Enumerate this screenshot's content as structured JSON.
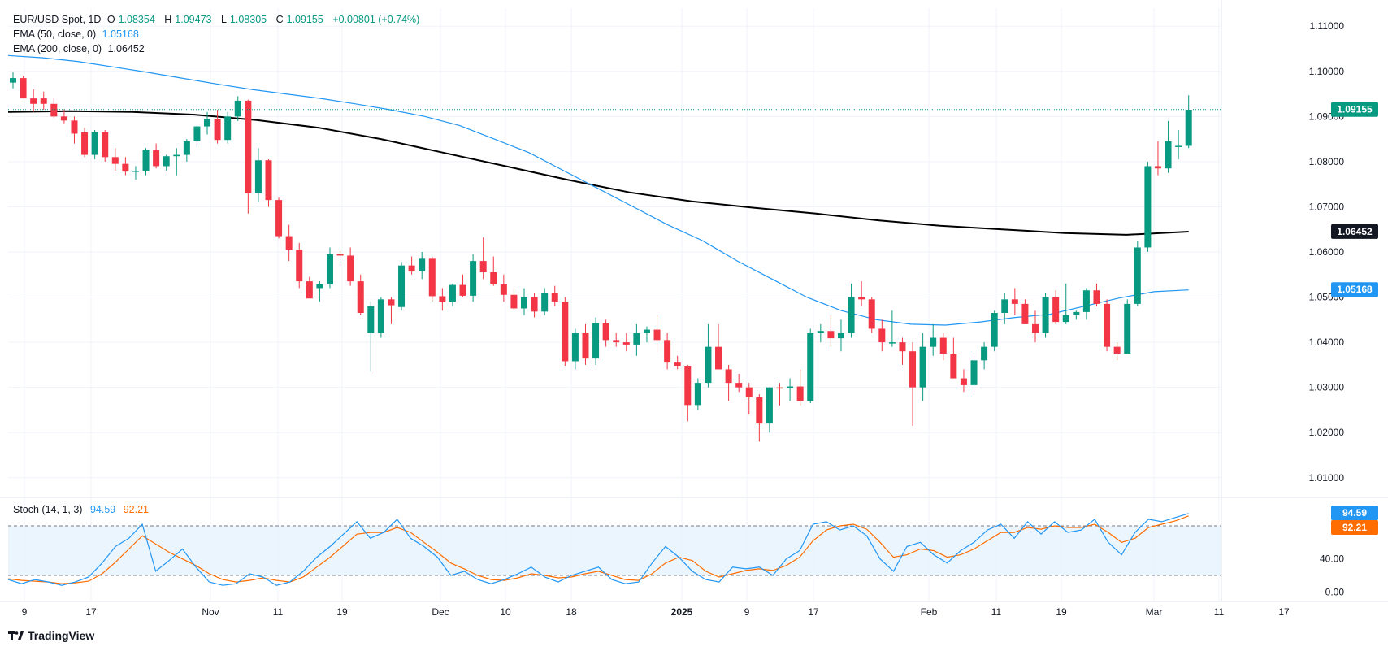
{
  "header": {
    "symbol": "EUR/USD Spot, 1D",
    "open_label": "O",
    "open": "1.08354",
    "high_label": "H",
    "high": "1.09473",
    "low_label": "L",
    "low": "1.08305",
    "close_label": "C",
    "close": "1.09155",
    "change": "+0.00801 (+0.74%)"
  },
  "indicators": {
    "ema50": {
      "label": "EMA (50, close, 0)",
      "value": "1.05168"
    },
    "ema200": {
      "label": "EMA (200, close, 0)",
      "value": "1.06452"
    },
    "stoch": {
      "label": "Stoch (14, 1, 3)",
      "k": "94.59",
      "d": "92.21"
    }
  },
  "price_axis_labels": [
    "1.11000",
    "1.10000",
    "1.09000",
    "1.08000",
    "1.07000",
    "1.06000",
    "1.05000",
    "1.04000",
    "1.03000",
    "1.02000",
    "1.01000"
  ],
  "price_badges": {
    "last": "1.09155",
    "ema200": "1.06452",
    "ema50": "1.05168"
  },
  "stoch_axis_labels": [
    "40.00",
    "0.00"
  ],
  "stoch_badges": {
    "k": "94.59",
    "d": "92.21"
  },
  "time_axis_labels": [
    "9",
    "17",
    "Nov",
    "11",
    "19",
    "Dec",
    "10",
    "18",
    "2025",
    "9",
    "17",
    "Feb",
    "11",
    "19",
    "Mar",
    "11",
    "17"
  ],
  "brand": "TradingView",
  "colors": {
    "up": "#089981",
    "down": "#f23645",
    "ema50": "#2196f3",
    "ema200": "#000000",
    "stoch_k": "#2196f3",
    "stoch_d": "#ff6d00",
    "band_fill": "#e3f2fd"
  },
  "chart_data": [
    {
      "type": "candlestick",
      "title": "EUR/USD Spot, 1D",
      "ylim": [
        1.006,
        1.114
      ],
      "grid": true,
      "ohlc": [
        [
          1.0975,
          1.0998,
          1.0962,
          1.0985
        ],
        [
          1.0985,
          1.099,
          1.094,
          1.094
        ],
        [
          1.094,
          1.096,
          1.091,
          1.0928
        ],
        [
          1.094,
          1.0955,
          1.0915,
          1.0928
        ],
        [
          1.0928,
          1.0942,
          1.0898,
          1.09
        ],
        [
          1.09,
          1.0916,
          1.0885,
          1.0891
        ],
        [
          1.0891,
          1.09,
          1.084,
          1.0862
        ],
        [
          1.0865,
          1.0875,
          1.081,
          1.0815
        ],
        [
          1.0815,
          1.087,
          1.0805,
          1.0865
        ],
        [
          1.0865,
          1.087,
          1.08,
          1.081
        ],
        [
          1.081,
          1.083,
          1.078,
          1.0795
        ],
        [
          1.0795,
          1.081,
          1.077,
          1.0778
        ],
        [
          1.0778,
          1.079,
          1.076,
          1.078
        ],
        [
          1.078,
          1.083,
          1.077,
          1.0825
        ],
        [
          1.0825,
          1.084,
          1.0785,
          1.079
        ],
        [
          1.079,
          1.0815,
          1.078,
          1.0812
        ],
        [
          1.0812,
          1.083,
          1.077,
          1.0815
        ],
        [
          1.0815,
          1.085,
          1.08,
          1.0845
        ],
        [
          1.0845,
          1.088,
          1.083,
          1.0878
        ],
        [
          1.0878,
          1.091,
          1.086,
          1.0895
        ],
        [
          1.0895,
          1.0915,
          1.084,
          1.0848
        ],
        [
          1.0848,
          1.091,
          1.084,
          1.09
        ],
        [
          1.09,
          1.0945,
          1.089,
          1.0935
        ],
        [
          1.0935,
          1.0937,
          1.0685,
          1.073
        ],
        [
          1.073,
          1.083,
          1.071,
          1.0803
        ],
        [
          1.0803,
          1.0805,
          1.07,
          1.0715
        ],
        [
          1.0715,
          1.072,
          1.063,
          1.0635
        ],
        [
          1.0635,
          1.066,
          1.058,
          1.0605
        ],
        [
          1.0605,
          1.062,
          1.052,
          1.0535
        ],
        [
          1.0535,
          1.0545,
          1.05,
          1.0497
        ],
        [
          1.052,
          1.0535,
          1.049,
          1.0528
        ],
        [
          1.0528,
          1.061,
          1.052,
          1.0595
        ],
        [
          1.0595,
          1.0605,
          1.057,
          1.0592
        ],
        [
          1.0592,
          1.061,
          1.0525,
          1.0535
        ],
        [
          1.0535,
          1.055,
          1.046,
          1.0465
        ],
        [
          1.042,
          1.049,
          1.0335,
          1.048
        ],
        [
          1.042,
          1.05,
          1.041,
          1.0495
        ],
        [
          1.0495,
          1.05,
          1.044,
          1.0482
        ],
        [
          1.0478,
          1.0578,
          1.047,
          1.057
        ],
        [
          1.057,
          1.059,
          1.055,
          1.0557
        ],
        [
          1.0557,
          1.06,
          1.054,
          1.0585
        ],
        [
          1.0585,
          1.059,
          1.049,
          1.0502
        ],
        [
          1.0502,
          1.052,
          1.047,
          1.049
        ],
        [
          1.049,
          1.053,
          1.048,
          1.0527
        ],
        [
          1.0527,
          1.055,
          1.05,
          1.0503
        ],
        [
          1.0503,
          1.0595,
          1.049,
          1.058
        ],
        [
          1.058,
          1.0632,
          1.054,
          1.0555
        ],
        [
          1.0555,
          1.059,
          1.0525,
          1.0528
        ],
        [
          1.0528,
          1.055,
          1.049,
          1.0505
        ],
        [
          1.0505,
          1.052,
          1.047,
          1.0475
        ],
        [
          1.0475,
          1.052,
          1.046,
          1.05
        ],
        [
          1.05,
          1.051,
          1.0455,
          1.0468
        ],
        [
          1.0468,
          1.052,
          1.046,
          1.051
        ],
        [
          1.051,
          1.0525,
          1.048,
          1.049
        ],
        [
          1.049,
          1.05,
          1.0348,
          1.0358
        ],
        [
          1.0358,
          1.043,
          1.034,
          1.042
        ],
        [
          1.042,
          1.044,
          1.035,
          1.0364
        ],
        [
          1.0364,
          1.0455,
          1.035,
          1.0442
        ],
        [
          1.0442,
          1.045,
          1.039,
          1.0405
        ],
        [
          1.0405,
          1.042,
          1.039,
          1.04
        ],
        [
          1.04,
          1.042,
          1.038,
          1.0395
        ],
        [
          1.0395,
          1.044,
          1.037,
          1.042
        ],
        [
          1.042,
          1.0435,
          1.04,
          1.0428
        ],
        [
          1.0428,
          1.046,
          1.038,
          1.0405
        ],
        [
          1.0405,
          1.042,
          1.034,
          1.0355
        ],
        [
          1.0355,
          1.037,
          1.034,
          1.0348
        ],
        [
          1.0348,
          1.035,
          1.0225,
          1.0261
        ],
        [
          1.0261,
          1.032,
          1.025,
          1.031
        ],
        [
          1.031,
          1.044,
          1.03,
          1.039
        ],
        [
          1.039,
          1.044,
          1.034,
          1.034
        ],
        [
          1.034,
          1.035,
          1.027,
          1.031
        ],
        [
          1.031,
          1.033,
          1.029,
          1.03
        ],
        [
          1.03,
          1.031,
          1.024,
          1.0278
        ],
        [
          1.0278,
          1.0285,
          1.018,
          1.022
        ],
        [
          1.022,
          1.03,
          1.02,
          1.03
        ],
        [
          1.03,
          1.031,
          1.026,
          1.0298
        ],
        [
          1.0298,
          1.032,
          1.027,
          1.0302
        ],
        [
          1.0302,
          1.034,
          1.026,
          1.027
        ],
        [
          1.027,
          1.043,
          1.0265,
          1.042
        ],
        [
          1.042,
          1.044,
          1.04,
          1.0425
        ],
        [
          1.0425,
          1.046,
          1.039,
          1.0409
        ],
        [
          1.0409,
          1.045,
          1.038,
          1.042
        ],
        [
          1.042,
          1.053,
          1.041,
          1.05
        ],
        [
          1.05,
          1.0535,
          1.048,
          1.0495
        ],
        [
          1.0495,
          1.05,
          1.042,
          1.043
        ],
        [
          1.043,
          1.045,
          1.038,
          1.04
        ],
        [
          1.04,
          1.047,
          1.039,
          1.04
        ],
        [
          1.04,
          1.041,
          1.035,
          1.038
        ],
        [
          1.038,
          1.04,
          1.0215,
          1.03
        ],
        [
          1.03,
          1.042,
          1.027,
          1.039
        ],
        [
          1.039,
          1.044,
          1.037,
          1.041
        ],
        [
          1.041,
          1.042,
          1.036,
          1.0375
        ],
        [
          1.0375,
          1.041,
          1.032,
          1.032
        ],
        [
          1.032,
          1.034,
          1.029,
          1.0305
        ],
        [
          1.0305,
          1.037,
          1.029,
          1.036
        ],
        [
          1.036,
          1.04,
          1.034,
          1.039
        ],
        [
          1.039,
          1.047,
          1.038,
          1.0465
        ],
        [
          1.0465,
          1.051,
          1.044,
          1.0495
        ],
        [
          1.0495,
          1.052,
          1.046,
          1.0485
        ],
        [
          1.0485,
          1.0495,
          1.044,
          1.044
        ],
        [
          1.044,
          1.047,
          1.04,
          1.042
        ],
        [
          1.042,
          1.051,
          1.041,
          1.05
        ],
        [
          1.05,
          1.0515,
          1.044,
          1.0445
        ],
        [
          1.0445,
          1.053,
          1.044,
          1.046
        ],
        [
          1.046,
          1.047,
          1.045,
          1.0467
        ],
        [
          1.0467,
          1.052,
          1.045,
          1.0515
        ],
        [
          1.0515,
          1.053,
          1.048,
          1.0485
        ],
        [
          1.0485,
          1.0495,
          1.038,
          1.039
        ],
        [
          1.039,
          1.04,
          1.036,
          1.0375
        ],
        [
          1.0375,
          1.0495,
          1.0375,
          1.0485
        ],
        [
          1.0485,
          1.0625,
          1.048,
          1.061
        ],
        [
          1.061,
          1.08,
          1.06,
          1.079
        ],
        [
          1.079,
          1.0845,
          1.077,
          1.0785
        ],
        [
          1.0785,
          1.089,
          1.0775,
          1.0845
        ],
        [
          1.0835,
          1.087,
          1.0805,
          1.0835
        ],
        [
          1.0835,
          1.0947,
          1.083,
          1.0915
        ]
      ],
      "ema50": [
        1.1035,
        1.103,
        1.1022,
        1.101,
        1.0998,
        1.0985,
        1.0972,
        1.096,
        1.095,
        1.094,
        1.0928,
        1.0915,
        1.09,
        1.088,
        1.085,
        1.082,
        1.078,
        1.074,
        1.07,
        1.066,
        1.0625,
        1.058,
        1.054,
        1.05,
        1.047,
        1.045,
        1.044,
        1.0438,
        1.0445,
        1.0455,
        1.0462,
        1.048,
        1.0498,
        1.0512,
        1.0516
      ],
      "ema200": [
        1.091,
        1.0912,
        1.091,
        1.0904,
        1.0892,
        1.0875,
        1.085,
        1.082,
        1.079,
        1.076,
        1.0732,
        1.0712,
        1.0698,
        1.0685,
        1.067,
        1.0658,
        1.065,
        1.0642,
        1.0638,
        1.0645
      ],
      "stoch_k": [
        15,
        10,
        15,
        12,
        8,
        12,
        18,
        35,
        55,
        65,
        82,
        25,
        38,
        52,
        30,
        12,
        8,
        10,
        22,
        18,
        8,
        12,
        25,
        42,
        55,
        70,
        85,
        65,
        72,
        88,
        65,
        55,
        42,
        20,
        25,
        15,
        10,
        15,
        22,
        30,
        18,
        12,
        20,
        25,
        30,
        15,
        10,
        12,
        35,
        55,
        42,
        25,
        15,
        12,
        30,
        28,
        30,
        20,
        40,
        50,
        82,
        85,
        75,
        80,
        68,
        40,
        25,
        55,
        60,
        45,
        35,
        50,
        60,
        75,
        82,
        65,
        85,
        70,
        85,
        72,
        75,
        88,
        60,
        45,
        72,
        88,
        85,
        90,
        95
      ],
      "stoch_d": [
        16,
        14,
        13,
        12,
        10,
        11,
        13,
        22,
        36,
        52,
        68,
        58,
        48,
        40,
        32,
        22,
        15,
        12,
        14,
        17,
        14,
        12,
        18,
        30,
        42,
        56,
        70,
        72,
        72,
        78,
        72,
        60,
        48,
        35,
        28,
        20,
        15,
        14,
        17,
        22,
        20,
        17,
        18,
        22,
        25,
        20,
        15,
        14,
        22,
        35,
        42,
        38,
        25,
        18,
        22,
        26,
        28,
        26,
        32,
        42,
        62,
        75,
        80,
        82,
        76,
        60,
        42,
        45,
        52,
        50,
        42,
        45,
        52,
        62,
        72,
        72,
        78,
        76,
        80,
        78,
        78,
        82,
        72,
        60,
        65,
        78,
        82,
        86,
        92
      ]
    }
  ]
}
